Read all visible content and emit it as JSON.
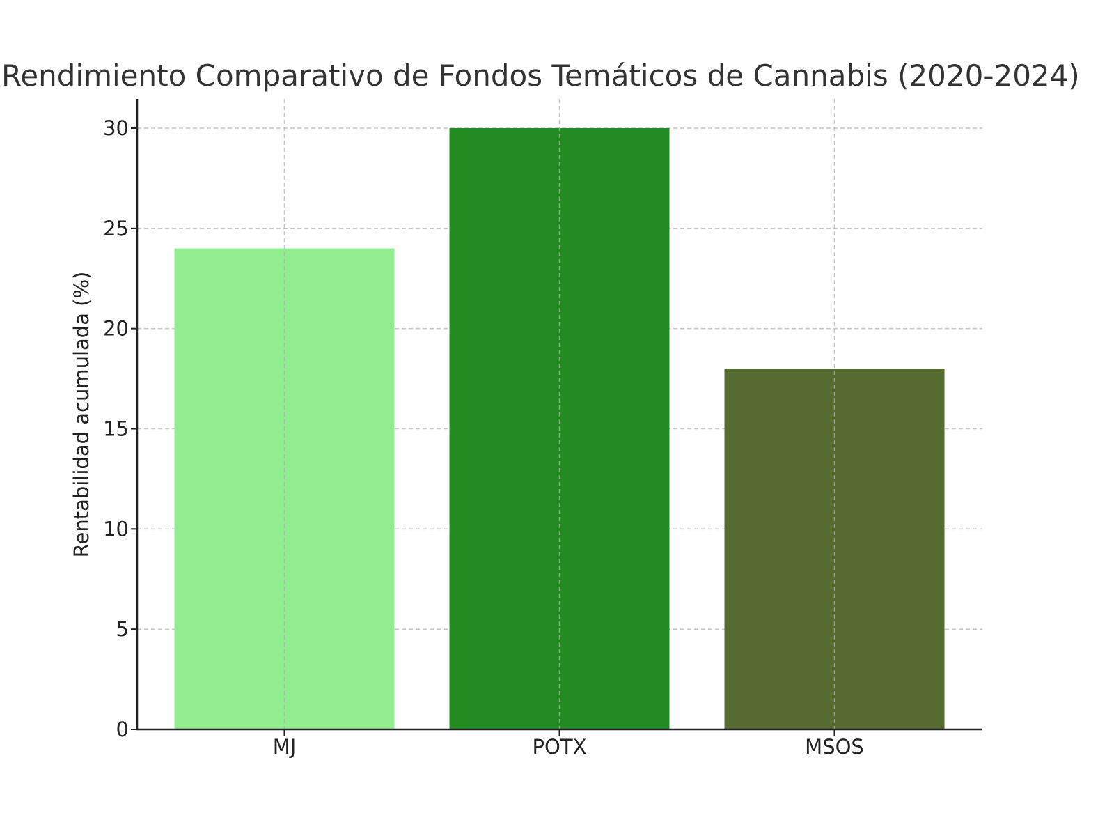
{
  "chart_data": {
    "type": "bar",
    "title": "Rendimiento Comparativo de Fondos Temáticos de Cannabis (2020-2024)",
    "xlabel": "",
    "ylabel": "Rentabilidad acumulada (%)",
    "categories": [
      "MJ",
      "POTX",
      "MSOS"
    ],
    "values": [
      24,
      30,
      18
    ],
    "colors": [
      "#90EE90",
      "#228B22",
      "#556B2F"
    ],
    "ylim": [
      0,
      31.5
    ],
    "yticks": [
      0,
      5,
      10,
      15,
      20,
      25,
      30
    ],
    "grid": true,
    "legend": null
  }
}
